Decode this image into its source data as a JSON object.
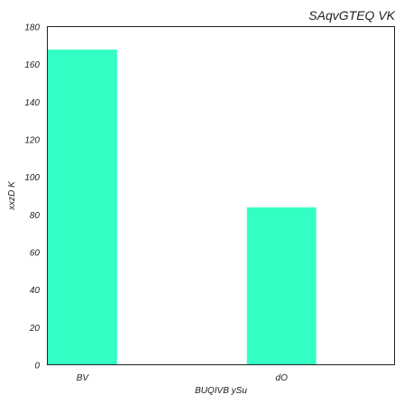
{
  "chart_data": {
    "type": "bar",
    "title": "SAqvGTEQ VK",
    "xlabel": "BUQIVB ySu",
    "ylabel": "xxzD K",
    "categories": [
      "BV",
      "dO"
    ],
    "values": [
      168,
      84
    ],
    "ylim": [
      0,
      180
    ],
    "yticks": [
      0,
      20,
      40,
      60,
      80,
      100,
      120,
      140,
      160,
      180
    ],
    "grid": false,
    "bar_color": "#33ffc4"
  }
}
